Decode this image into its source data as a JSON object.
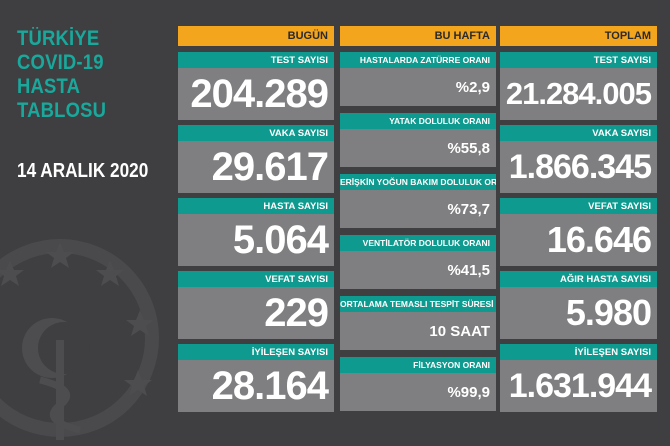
{
  "title": {
    "lines": [
      "TÜRKİYE",
      "COVID-19",
      "HASTA",
      "TABLOSU"
    ]
  },
  "date": "14 ARALIK 2020",
  "columns": {
    "today": "BUGÜN",
    "week": "BU HAFTA",
    "total": "TOPLAM"
  },
  "today": [
    {
      "label": "TEST SAYISI",
      "value": "204.289"
    },
    {
      "label": "VAKA SAYISI",
      "value": "29.617"
    },
    {
      "label": "HASTA SAYISI",
      "value": "5.064"
    },
    {
      "label": "VEFAT SAYISI",
      "value": "229"
    },
    {
      "label": "İYİLEŞEN SAYISI",
      "value": "28.164"
    }
  ],
  "week": [
    {
      "label": "HASTALARDA ZATÜRRE ORANI",
      "value": "%2,9"
    },
    {
      "label": "YATAK DOLULUK ORANI",
      "value": "%55,8"
    },
    {
      "label": "ERİŞKİN YOĞUN BAKIM DOLULUK ORANI",
      "value": "%73,7"
    },
    {
      "label": "VENTİLATÖR DOLULUK ORANI",
      "value": "%41,5"
    },
    {
      "label": "ORTALAMA TEMASLI TESPİT SÜRESİ",
      "value": "10 SAAT"
    },
    {
      "label": "FİLYASYON ORANI",
      "value": "%99,9"
    }
  ],
  "total": [
    {
      "label": "TEST SAYISI",
      "value": "21.284.005"
    },
    {
      "label": "VAKA SAYISI",
      "value": "1.866.345"
    },
    {
      "label": "VEFAT SAYISI",
      "value": "16.646"
    },
    {
      "label": "AĞIR HASTA SAYISI",
      "value": "5.980"
    },
    {
      "label": "İYİLEŞEN SAYISI",
      "value": "1.631.944"
    }
  ],
  "colors": {
    "background": "#3f3f41",
    "accent": "#f3a51e",
    "teal": "#0f9a8f",
    "title": "#19a89c",
    "card": "#7f7f81"
  },
  "icons": [
    "ministry-emblem-icon"
  ]
}
